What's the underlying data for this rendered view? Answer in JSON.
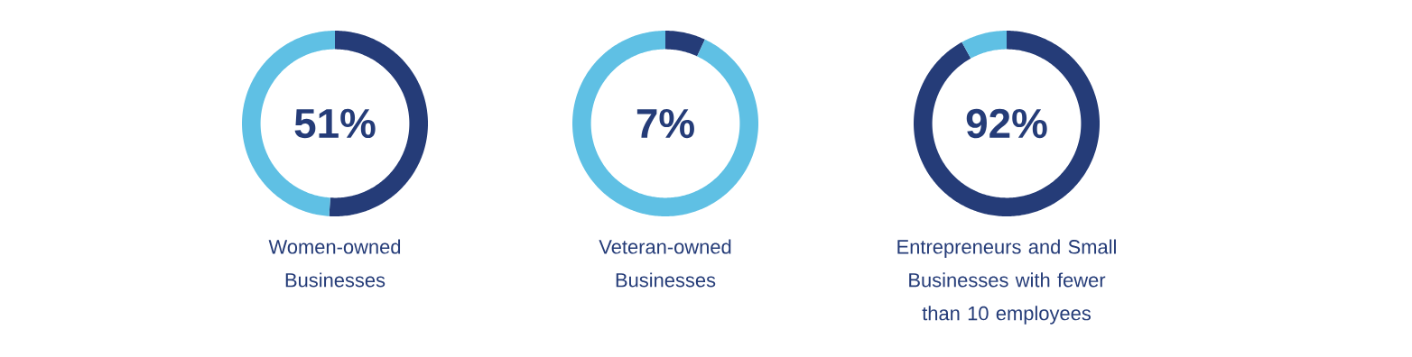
{
  "chart_data": [
    {
      "type": "donut",
      "title": "Women-owned Businesses",
      "categories": [
        null,
        null
      ],
      "values": [
        51,
        49
      ],
      "colors": [
        "#253c78",
        "#5fc0e4"
      ],
      "annotations": [
        "51%"
      ]
    },
    {
      "type": "donut",
      "title": "Veteran-owned Businesses",
      "categories": [
        null,
        null
      ],
      "values": [
        7,
        93
      ],
      "colors": [
        "#253c78",
        "#5fc0e4"
      ],
      "annotations": [
        "7%"
      ]
    },
    {
      "type": "donut",
      "title": "Entrepreneurs and Small Businesses with fewer than 10 employees",
      "categories": [
        null,
        null
      ],
      "values": [
        92,
        8
      ],
      "colors": [
        "#253c78",
        "#5fc0e4"
      ],
      "annotations": [
        "92%"
      ]
    }
  ]
}
